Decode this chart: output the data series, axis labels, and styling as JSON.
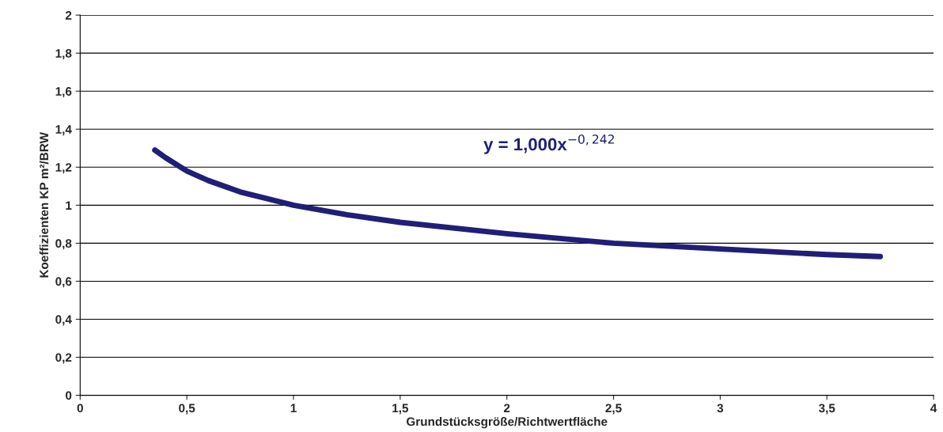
{
  "chart_data": {
    "type": "line",
    "xlabel": "Grundstücksgröße/Richtwertfläche",
    "ylabel": "Koeffizienten KP m²/BRW",
    "annotations": [
      "y = 1,000x$^{−0,242}$"
    ],
    "x": [
      0.35,
      0.4,
      0.5,
      0.6,
      0.75,
      1,
      1.25,
      1.5,
      2,
      2.5,
      3,
      3.5,
      3.75
    ],
    "series": [
      {
        "color": "#1f1f78",
        "values": [
          1.29,
          1.25,
          1.18,
          1.13,
          1.07,
          1.0,
          0.95,
          0.91,
          0.85,
          0.8,
          0.77,
          0.74,
          0.73
        ]
      }
    ],
    "xlim": [
      0,
      4
    ],
    "xticks": [
      0,
      {
        "value": 0.5,
        "label": "0,5"
      },
      1,
      {
        "value": 1.5,
        "label": "1,5"
      },
      2,
      {
        "value": 2.5,
        "label": "2,5"
      },
      3,
      {
        "value": 3.5,
        "label": "3,5"
      },
      4
    ],
    "ylim": [
      0,
      2
    ],
    "yticks": [
      0,
      {
        "value": 0.2,
        "label": "0,2"
      },
      {
        "value": 0.4,
        "label": "0,4"
      },
      {
        "value": 0.6,
        "label": "0,6"
      },
      {
        "value": 0.8,
        "label": "0,8"
      },
      1,
      {
        "value": 1.2,
        "label": "1,2"
      },
      {
        "value": 1.4,
        "label": "1,4"
      },
      {
        "value": 1.6,
        "label": "1,6"
      },
      {
        "value": 1.8,
        "label": "1,8"
      },
      2
    ],
    "grid": "y",
    "marker": "none",
    "line_style": "solid"
  }
}
